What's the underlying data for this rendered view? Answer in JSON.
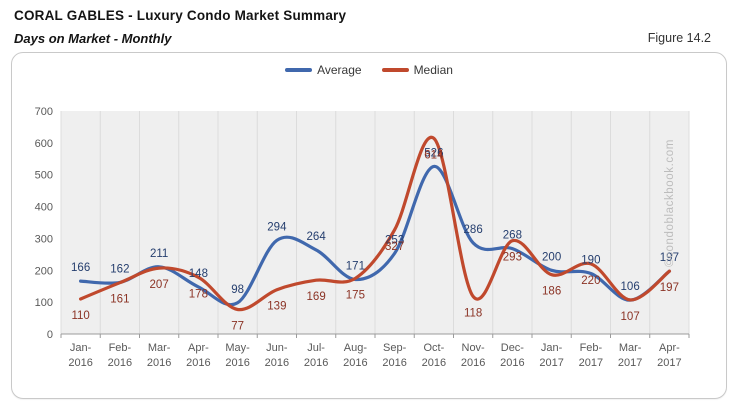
{
  "header": {
    "title": "CORAL GABLES - Luxury Condo Market Summary",
    "subtitle": "Days on Market - Monthly",
    "figure_label": "Figure 14.2"
  },
  "legend": {
    "items": [
      {
        "label": "Average",
        "color": "#4068ad"
      },
      {
        "label": "Median",
        "color": "#c0492d"
      }
    ]
  },
  "watermark": "©condoblackbook.com",
  "chart_data": {
    "type": "line",
    "smoothed": true,
    "title": "Days on Market - Monthly",
    "xlabel": "",
    "ylabel": "",
    "categories": [
      "Jan-2016",
      "Feb-2016",
      "Mar-2016",
      "Apr-2016",
      "May-2016",
      "Jun-2016",
      "Jul-2016",
      "Aug-2016",
      "Sep-2016",
      "Oct-2016",
      "Nov-2016",
      "Dec-2016",
      "Jan-2017",
      "Feb-2017",
      "Mar-2017",
      "Apr-2017"
    ],
    "series": [
      {
        "name": "Average",
        "color": "#4068ad",
        "label_color": "#253e6e",
        "values": [
          166,
          162,
          211,
          148,
          98,
          294,
          264,
          171,
          253,
          526,
          286,
          268,
          200,
          190,
          106,
          197
        ]
      },
      {
        "name": "Median",
        "color": "#c0492d",
        "label_color": "#8b3325",
        "values": [
          110,
          161,
          207,
          178,
          77,
          139,
          169,
          175,
          327,
          614,
          118,
          293,
          186,
          220,
          107,
          197
        ]
      }
    ],
    "ylim": [
      0,
      700
    ],
    "ytick_step": 100,
    "grid": "vertical-only",
    "legend_position": "top-center",
    "plot_bg": "#efefef",
    "gridline_color": "#dcdcdc",
    "axis_color": "#9b9b9b",
    "tick_label_color": "#595959"
  }
}
